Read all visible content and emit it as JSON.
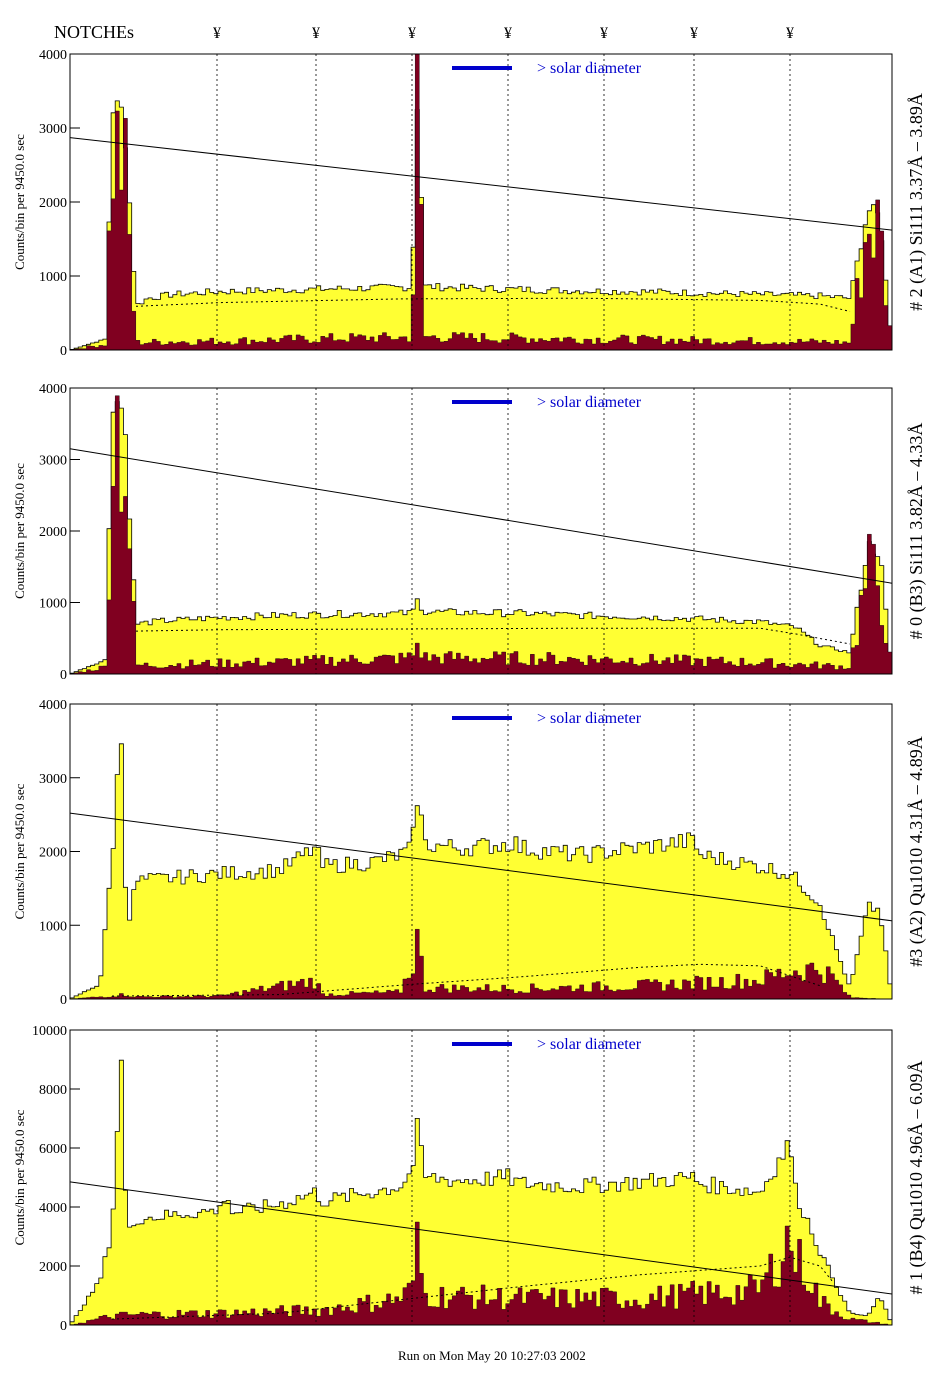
{
  "header": {
    "notches_label": "NOTCHEs",
    "notch_symbol": "¥",
    "run_info": "Run on Mon May 20 10:27:03 2002"
  },
  "colors": {
    "total_fill": "#ffff33",
    "background_fill": "#800020",
    "annotation_blue": "#0000cc",
    "axis": "#000000"
  },
  "chart_data": [
    {
      "type": "bar",
      "panel_label": "# 2 (A1) Si111  3.37Å – 3.89Å",
      "ylabel": "Counts/bin per   9450.0 sec",
      "ylim": [
        0,
        4000
      ],
      "yticks": [
        "0",
        "1000",
        "2000",
        "3000",
        "4000"
      ],
      "solar_diameter_label": "> solar diameter",
      "notch_positions": [
        0.195,
        0.36,
        0.52,
        0.68,
        0.84,
        0.99,
        1.15
      ],
      "series": [
        {
          "name": "total",
          "x": [
            -0.05,
            0.01,
            0.02,
            0.04,
            0.06,
            0.08,
            0.12,
            0.2,
            0.3,
            0.4,
            0.52,
            0.53,
            0.54,
            0.6,
            0.7,
            0.8,
            0.9,
            1.0,
            1.1,
            1.2,
            1.25,
            1.28,
            1.3,
            1.32
          ],
          "values": [
            0,
            150,
            3300,
            3200,
            600,
            700,
            750,
            790,
            810,
            830,
            850,
            3700,
            860,
            840,
            820,
            800,
            790,
            770,
            750,
            730,
            700,
            1900,
            1800,
            0
          ]
        },
        {
          "name": "background",
          "x": [
            -0.05,
            0.01,
            0.02,
            0.04,
            0.06,
            0.1,
            0.2,
            0.3,
            0.4,
            0.52,
            0.53,
            0.54,
            0.6,
            0.7,
            0.8,
            0.9,
            1.0,
            1.1,
            1.2,
            1.25,
            1.28,
            1.3,
            1.32
          ],
          "values": [
            0,
            80,
            2700,
            2600,
            100,
            110,
            120,
            140,
            160,
            170,
            3500,
            180,
            170,
            160,
            150,
            140,
            130,
            120,
            110,
            100,
            1700,
            1600,
            0
          ]
        },
        {
          "name": "fit_line",
          "x": [
            -0.05,
            1.32
          ],
          "values": [
            2870,
            1620
          ]
        },
        {
          "name": "dotted_model",
          "x": [
            0.06,
            0.2,
            0.5,
            0.8,
            1.1,
            1.2,
            1.25
          ],
          "values": [
            590,
            640,
            690,
            700,
            670,
            620,
            520
          ]
        }
      ]
    },
    {
      "type": "bar",
      "panel_label": "# 0 (B3) Si111  3.82Å – 4.33Å",
      "ylabel": "Counts/bin per   9450.0 sec",
      "ylim": [
        0,
        4000
      ],
      "yticks": [
        "0",
        "1000",
        "2000",
        "3000",
        "4000"
      ],
      "solar_diameter_label": "> solar diameter",
      "notch_positions": [
        0.195,
        0.36,
        0.52,
        0.68,
        0.84,
        0.99,
        1.15
      ],
      "series": [
        {
          "name": "total",
          "x": [
            -0.05,
            0.01,
            0.02,
            0.04,
            0.06,
            0.1,
            0.2,
            0.3,
            0.4,
            0.52,
            0.53,
            0.54,
            0.6,
            0.7,
            0.8,
            0.9,
            1.0,
            1.1,
            1.16,
            1.2,
            1.25,
            1.28,
            1.3,
            1.32
          ],
          "values": [
            0,
            200,
            3900,
            3700,
            700,
            740,
            790,
            820,
            840,
            850,
            1050,
            870,
            860,
            850,
            820,
            800,
            770,
            730,
            650,
            400,
            300,
            1800,
            1700,
            0
          ]
        },
        {
          "name": "background",
          "x": [
            -0.05,
            0.01,
            0.02,
            0.04,
            0.06,
            0.1,
            0.3,
            0.5,
            0.52,
            0.53,
            0.54,
            0.7,
            0.9,
            1.1,
            1.2,
            1.25,
            1.28,
            1.3,
            1.32
          ],
          "values": [
            0,
            100,
            3600,
            3400,
            120,
            130,
            170,
            220,
            240,
            430,
            230,
            220,
            200,
            160,
            120,
            100,
            1400,
            1300,
            0
          ]
        },
        {
          "name": "fit_line",
          "x": [
            -0.05,
            1.32
          ],
          "values": [
            3150,
            1270
          ]
        },
        {
          "name": "dotted_model",
          "x": [
            0.06,
            0.2,
            0.5,
            0.8,
            1.1,
            1.16,
            1.25
          ],
          "values": [
            600,
            620,
            630,
            640,
            640,
            560,
            420
          ]
        }
      ]
    },
    {
      "type": "bar",
      "panel_label": "#3 (A2) Qu1010  4.31Å – 4.89Å",
      "ylabel": "Counts/bin per   9450.0 sec",
      "ylim": [
        0,
        4000
      ],
      "yticks": [
        "0",
        "1000",
        "2000",
        "3000",
        "4000"
      ],
      "solar_diameter_label": "> solar diameter",
      "notch_positions": [
        0.195,
        0.36,
        0.52,
        0.68,
        0.84,
        0.99,
        1.15
      ],
      "series": [
        {
          "name": "total",
          "x": [
            -0.05,
            0.0,
            0.02,
            0.035,
            0.045,
            0.06,
            0.2,
            0.3,
            0.36,
            0.37,
            0.45,
            0.5,
            0.52,
            0.53,
            0.54,
            0.6,
            0.68,
            0.69,
            0.7,
            0.8,
            0.99,
            1.0,
            1.1,
            1.15,
            1.2,
            1.25,
            1.28,
            1.3,
            1.32
          ],
          "values": [
            0,
            200,
            1900,
            3700,
            900,
            1600,
            1700,
            1750,
            2050,
            1800,
            1850,
            1950,
            2050,
            2850,
            2100,
            2050,
            2100,
            2150,
            2050,
            1950,
            2150,
            1950,
            1800,
            1700,
            1300,
            150,
            1250,
            1200,
            0
          ]
        },
        {
          "name": "background",
          "x": [
            -0.05,
            0.02,
            0.04,
            0.06,
            0.2,
            0.36,
            0.37,
            0.5,
            0.52,
            0.53,
            0.54,
            0.7,
            0.9,
            1.1,
            1.15,
            1.2,
            1.22,
            1.25,
            1.32
          ],
          "values": [
            0,
            40,
            60,
            30,
            40,
            250,
            60,
            90,
            450,
            850,
            150,
            140,
            180,
            260,
            380,
            420,
            300,
            20,
            0
          ]
        },
        {
          "name": "fit_line",
          "x": [
            -0.05,
            1.32
          ],
          "values": [
            2520,
            1060
          ]
        },
        {
          "name": "dotted_model",
          "x": [
            0.02,
            0.3,
            0.52,
            0.7,
            0.9,
            1.0,
            1.1,
            1.2
          ],
          "values": [
            40,
            60,
            200,
            300,
            430,
            470,
            450,
            180
          ]
        }
      ]
    },
    {
      "type": "bar",
      "panel_label": "# 1 (B4) Qu1010  4.96Å – 6.09Å",
      "ylabel": "Counts/bin per   9450.0 sec",
      "ylim": [
        0,
        10000
      ],
      "yticks": [
        "0",
        "2000",
        "4000",
        "6000",
        "8000",
        "10000"
      ],
      "solar_diameter_label": "> solar diameter",
      "notch_positions": [
        0.195,
        0.36,
        0.52,
        0.68,
        0.84,
        0.99,
        1.15
      ],
      "series": [
        {
          "name": "total",
          "x": [
            -0.05,
            0.0,
            0.02,
            0.035,
            0.045,
            0.06,
            0.2,
            0.21,
            0.22,
            0.3,
            0.36,
            0.37,
            0.4,
            0.5,
            0.52,
            0.53,
            0.54,
            0.6,
            0.68,
            0.7,
            0.8,
            0.99,
            1.0,
            1.1,
            1.15,
            1.16,
            1.17,
            1.2,
            1.25,
            1.28,
            1.3,
            1.32
          ],
          "values": [
            0,
            1500,
            3200,
            9200,
            3000,
            3600,
            3900,
            4600,
            3800,
            4100,
            4500,
            4200,
            4300,
            4700,
            5200,
            6800,
            5000,
            4900,
            5000,
            4800,
            4700,
            5000,
            4800,
            4500,
            6200,
            4400,
            4000,
            2500,
            400,
            300,
            1000,
            0
          ]
        },
        {
          "name": "background",
          "x": [
            -0.05,
            0.02,
            0.06,
            0.2,
            0.36,
            0.4,
            0.5,
            0.52,
            0.53,
            0.54,
            0.7,
            0.9,
            1.1,
            1.15,
            1.16,
            1.18,
            1.2,
            1.25,
            1.32
          ],
          "values": [
            0,
            300,
            350,
            400,
            500,
            600,
            900,
            1200,
            2800,
            1000,
            900,
            900,
            1200,
            3000,
            2200,
            1800,
            800,
            200,
            0
          ]
        },
        {
          "name": "fit_line",
          "x": [
            -0.05,
            1.32
          ],
          "values": [
            4850,
            1050
          ]
        },
        {
          "name": "dotted_model",
          "x": [
            0.02,
            0.3,
            0.52,
            0.7,
            0.9,
            1.1,
            1.15,
            1.2,
            1.22
          ],
          "values": [
            200,
            400,
            900,
            1300,
            1700,
            2000,
            2300,
            2000,
            1500
          ]
        }
      ]
    }
  ]
}
